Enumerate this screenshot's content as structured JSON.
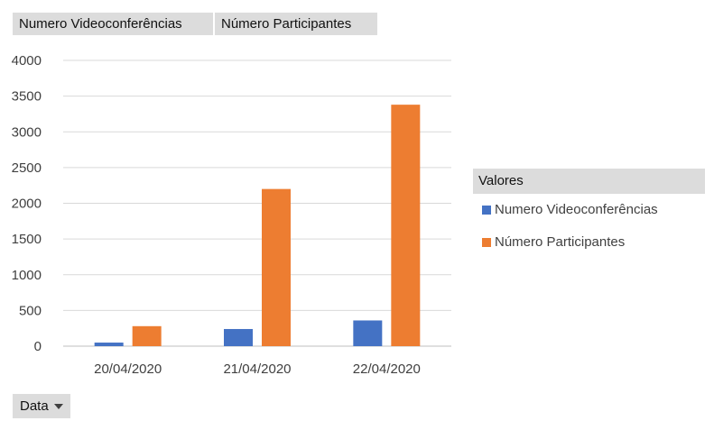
{
  "field_buttons": {
    "series_1": "Numero Videoconferências",
    "series_2": "Número Participantes"
  },
  "legend": {
    "title": "Valores",
    "items": [
      {
        "label": "Numero Videoconferências",
        "color": "#4472c4"
      },
      {
        "label": "Número Participantes",
        "color": "#ed7d31"
      }
    ]
  },
  "axis_field": {
    "label": "Data",
    "icon": "dropdown-arrow-icon"
  },
  "chart_data": {
    "type": "bar",
    "categories": [
      "20/04/2020",
      "21/04/2020",
      "22/04/2020"
    ],
    "series": [
      {
        "name": "Numero Videoconferências",
        "color": "#4472c4",
        "values": [
          50,
          240,
          360
        ]
      },
      {
        "name": "Número Participantes",
        "color": "#ed7d31",
        "values": [
          280,
          2200,
          3380
        ]
      }
    ],
    "ylim": [
      0,
      4000
    ],
    "yticks": [
      "0",
      "500",
      "1000",
      "1500",
      "2000",
      "2500",
      "3000",
      "3500",
      "4000"
    ],
    "grid": true,
    "legend_position": "right"
  }
}
